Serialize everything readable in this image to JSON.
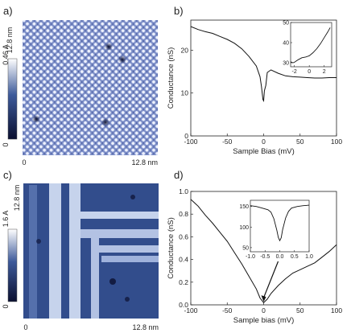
{
  "panels": {
    "a": {
      "letter": "a)",
      "y_size": "12.8 nm",
      "x_size": "12.8 nm",
      "x_origin": "0",
      "scale_max": "0.46 A",
      "scale_min": "0",
      "colormap": {
        "low": "#0b1030",
        "mid": "#3d5a9a",
        "high": "#ffffff"
      }
    },
    "b": {
      "letter": "b)",
      "chart_data": {
        "type": "line",
        "xlabel": "Sample Bias (mV)",
        "ylabel": "Conductance (nS)",
        "xlim": [
          -100,
          100
        ],
        "ylim": [
          0,
          27
        ],
        "xticks": [
          "-100",
          "-50",
          "0",
          "50",
          "100"
        ],
        "yticks": [
          "0",
          "10",
          "20"
        ],
        "series": [
          {
            "color": "#111111",
            "x": [
              -100,
              -90,
              -80,
              -70,
              -60,
              -50,
              -40,
              -30,
              -20,
              -10,
              -5,
              -3,
              -1,
              0,
              1,
              3,
              5,
              10,
              20,
              30,
              40,
              50,
              60,
              70,
              80,
              90,
              100
            ],
            "y": [
              25.5,
              24.8,
              24.3,
              23.9,
              23.2,
              22.5,
              21.6,
              20.3,
              18.5,
              16.3,
              13.8,
              11.5,
              8.5,
              8.2,
              10.5,
              11.8,
              14.8,
              15.4,
              14.6,
              14.0,
              13.8,
              13.7,
              13.6,
              13.5,
              13.5,
              13.6,
              13.6
            ]
          }
        ],
        "inset": {
          "xlim": [
            -2.5,
            3
          ],
          "ylim": [
            28,
            50
          ],
          "xticks": [
            "-2",
            "0",
            "2"
          ],
          "yticks": [
            "30",
            "40",
            "50"
          ],
          "x": [
            -2.5,
            -2.2,
            -2,
            -1.5,
            -1,
            -0.5,
            0,
            0.5,
            1,
            1.5,
            2,
            2.5,
            2.8
          ],
          "y": [
            30.5,
            30.0,
            30.2,
            31.5,
            32.5,
            32.8,
            33.5,
            35,
            37,
            39.5,
            42.5,
            45.5,
            47.5
          ]
        }
      }
    },
    "c": {
      "letter": "c)",
      "y_size": "12.8 nm",
      "x_size": "12.8 nm",
      "x_origin": "0",
      "scale_max": "1.6 A",
      "scale_min": "0",
      "colormap": {
        "low": "#0b1030",
        "mid": "#3d5a9a",
        "high": "#ffffff"
      }
    },
    "d": {
      "letter": "d)",
      "chart_data": {
        "type": "line",
        "xlabel": "Sample bias (mV)",
        "ylabel": "Conductance (nS)",
        "xlim": [
          -100,
          100
        ],
        "ylim": [
          0,
          1.0
        ],
        "xticks": [
          "-100",
          "-50",
          "0",
          "50",
          "100"
        ],
        "yticks": [
          "0.0",
          "0.2",
          "0.4",
          "0.6",
          "0.8",
          "1.0"
        ],
        "series": [
          {
            "color": "#111111",
            "x": [
              -100,
              -90,
              -80,
              -70,
              -60,
              -50,
              -40,
              -30,
              -20,
              -10,
              -5,
              0,
              5,
              10,
              20,
              30,
              40,
              50,
              60,
              70,
              80,
              90,
              100
            ],
            "y": [
              0.93,
              0.87,
              0.79,
              0.72,
              0.64,
              0.56,
              0.46,
              0.36,
              0.25,
              0.14,
              0.06,
              0.02,
              0.05,
              0.1,
              0.17,
              0.23,
              0.28,
              0.31,
              0.34,
              0.37,
              0.42,
              0.47,
              0.53
            ]
          }
        ],
        "inset": {
          "xlim": [
            -1.0,
            1.0
          ],
          "ylim": [
            40,
            165
          ],
          "xticks": [
            "-1.0",
            "-0.5",
            "0.0",
            "0.5",
            "1.0"
          ],
          "yticks": [
            "50",
            "100",
            "150"
          ],
          "x": [
            -1.0,
            -0.8,
            -0.6,
            -0.4,
            -0.3,
            -0.2,
            -0.1,
            -0.05,
            0,
            0.05,
            0.1,
            0.2,
            0.3,
            0.4,
            0.6,
            0.8,
            1.0
          ],
          "y": [
            152,
            150,
            146,
            142,
            136,
            120,
            92,
            75,
            67,
            74,
            94,
            122,
            138,
            146,
            150,
            152,
            153
          ]
        }
      }
    }
  }
}
